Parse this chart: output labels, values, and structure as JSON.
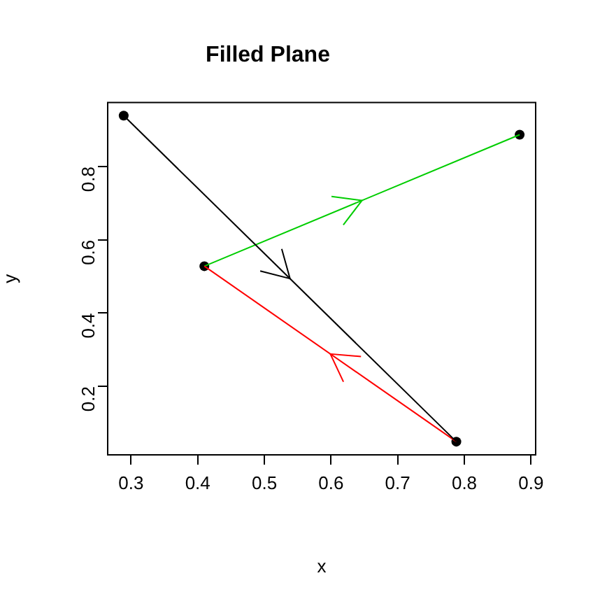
{
  "chart_data": {
    "type": "line",
    "title": "Filled Plane",
    "xlabel": "x",
    "ylabel": "y",
    "xlim": [
      0.265,
      0.907
    ],
    "xticks": [
      0.3,
      0.4,
      0.5,
      0.6,
      0.7,
      0.8,
      0.9
    ],
    "ylim": [
      0.013,
      0.975
    ],
    "yticks": [
      0.2,
      0.4,
      0.6,
      0.8
    ],
    "grid": false,
    "legend": false,
    "line_style": "solid",
    "series": [
      {
        "color": "#000000",
        "x": [
          0.289,
          0.788
        ],
        "values": [
          0.939,
          0.049
        ],
        "marker": "none"
      },
      {
        "color": "#ff0000",
        "x": [
          0.788,
          0.41
        ],
        "values": [
          0.049,
          0.528
        ],
        "marker": "none"
      },
      {
        "color": "#00cd00",
        "x": [
          0.41,
          0.883
        ],
        "values": [
          0.528,
          0.887
        ],
        "marker": "none"
      },
      {
        "type": "scatter",
        "color": "#000000",
        "x": [
          0.289,
          0.41,
          0.788,
          0.883
        ],
        "values": [
          0.939,
          0.528,
          0.049,
          0.887
        ],
        "marker": "circle"
      }
    ]
  }
}
